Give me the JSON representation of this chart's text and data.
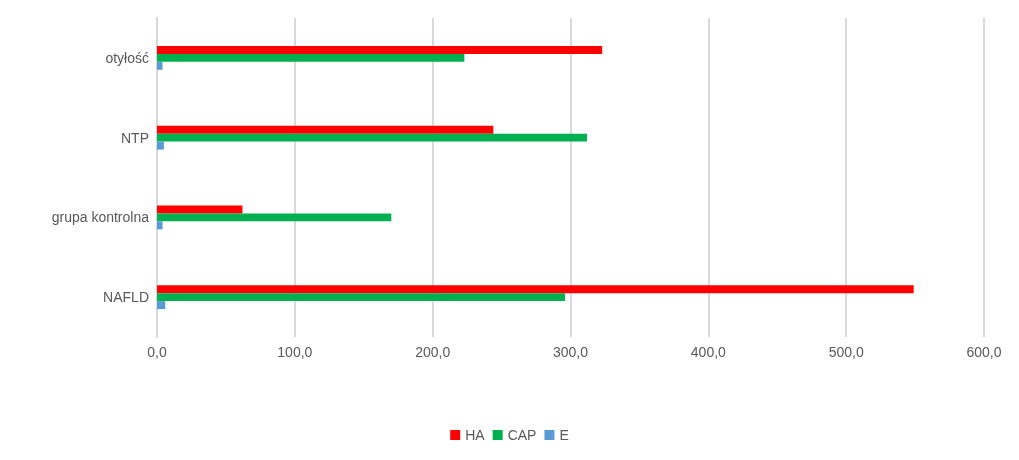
{
  "chart_data": {
    "type": "bar",
    "orientation": "horizontal",
    "categories": [
      "otyłość",
      "NTP",
      "grupa kontrolna",
      "NAFLD"
    ],
    "series": [
      {
        "name": "HA",
        "color": "#ff0000",
        "values": [
          323,
          244,
          62,
          549
        ]
      },
      {
        "name": "CAP",
        "color": "#00b050",
        "values": [
          223,
          312,
          170,
          296
        ]
      },
      {
        "name": "E",
        "color": "#5b9bd5",
        "values": [
          4,
          5,
          4,
          6
        ]
      }
    ],
    "xlim": [
      0,
      600
    ],
    "xticks": [
      {
        "value": 0,
        "label": "0,0"
      },
      {
        "value": 100,
        "label": "100,0"
      },
      {
        "value": 200,
        "label": "200,0"
      },
      {
        "value": 300,
        "label": "300,0"
      },
      {
        "value": 400,
        "label": "400,0"
      },
      {
        "value": 500,
        "label": "500,0"
      },
      {
        "value": 600,
        "label": "600,0"
      }
    ],
    "grid": "x",
    "legend": "bottom"
  }
}
